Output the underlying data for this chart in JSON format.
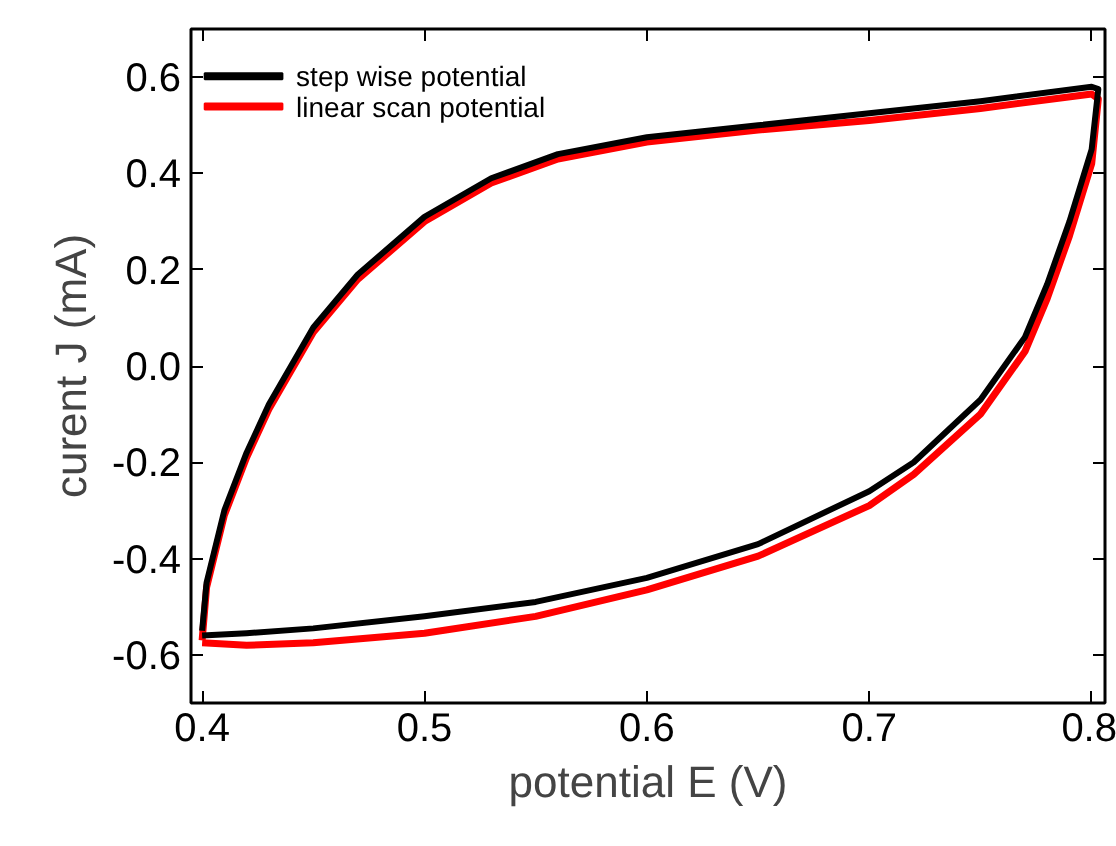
{
  "chart_data": {
    "type": "line",
    "xlabel": "potential E (V)",
    "ylabel": "curent J (mA)",
    "xlim": [
      0.395,
      0.806
    ],
    "ylim": [
      -0.7,
      0.7
    ],
    "xticks": [
      0.4,
      0.5,
      0.6,
      0.7,
      0.8
    ],
    "yticks": [
      -0.6,
      -0.4,
      -0.2,
      {
        "value": 0,
        "label": "0.0"
      },
      0.2,
      0.4,
      0.6
    ],
    "grid": false,
    "legend": "top left",
    "marker": "none",
    "line_style": "solid",
    "series": [
      {
        "name": "step wise potential",
        "color": "#000000",
        "x": [
          0.4,
          0.402,
          0.41,
          0.42,
          0.43,
          0.45,
          0.47,
          0.5,
          0.53,
          0.56,
          0.6,
          0.65,
          0.7,
          0.75,
          0.8,
          0.803,
          0.8,
          0.79,
          0.78,
          0.77,
          0.75,
          0.72,
          0.7,
          0.65,
          0.6,
          0.55,
          0.5,
          0.45,
          0.42,
          0.4
        ],
        "values": [
          -0.55,
          -0.45,
          -0.3,
          -0.18,
          -0.08,
          0.08,
          0.19,
          0.31,
          0.39,
          0.44,
          0.475,
          0.5,
          0.525,
          0.55,
          0.58,
          0.575,
          0.45,
          0.3,
          0.17,
          0.06,
          -0.07,
          -0.2,
          -0.26,
          -0.37,
          -0.44,
          -0.49,
          -0.52,
          -0.545,
          -0.555,
          -0.56
        ]
      },
      {
        "name": "linear scan potential",
        "color": "#ff0000",
        "x": [
          0.4,
          0.402,
          0.41,
          0.42,
          0.43,
          0.45,
          0.47,
          0.5,
          0.53,
          0.56,
          0.6,
          0.65,
          0.7,
          0.75,
          0.8,
          0.803,
          0.8,
          0.79,
          0.78,
          0.77,
          0.75,
          0.72,
          0.7,
          0.65,
          0.6,
          0.55,
          0.5,
          0.45,
          0.42,
          0.4
        ],
        "values": [
          -0.57,
          -0.46,
          -0.31,
          -0.19,
          -0.09,
          0.07,
          0.18,
          0.3,
          0.38,
          0.43,
          0.465,
          0.49,
          0.51,
          0.535,
          0.565,
          0.555,
          0.42,
          0.27,
          0.14,
          0.03,
          -0.1,
          -0.225,
          -0.29,
          -0.395,
          -0.465,
          -0.52,
          -0.555,
          -0.575,
          -0.58,
          -0.575
        ]
      }
    ]
  }
}
